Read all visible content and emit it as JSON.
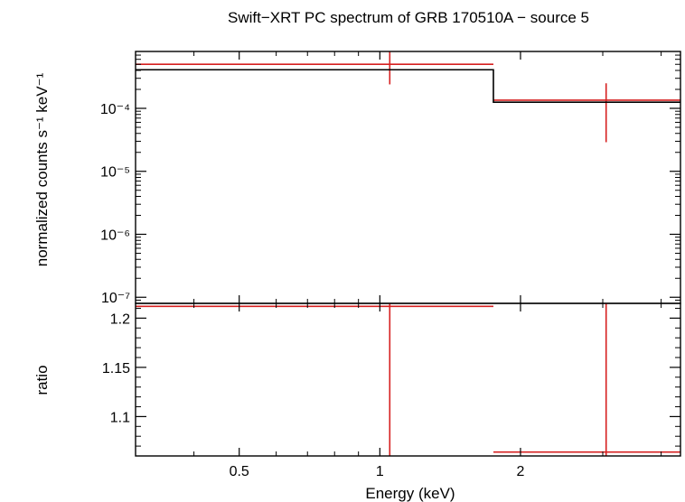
{
  "chart_data": [
    {
      "type": "line",
      "title": "Swift−XRT PC spectrum of GRB 170510A − source 5",
      "ylabel": "normalized counts s⁻¹ keV⁻¹",
      "xlabel": "",
      "x_scale": "log",
      "y_scale": "log",
      "xlim": [
        0.3,
        4.4
      ],
      "ylim": [
        8e-08,
        0.0008
      ],
      "x_tick_labels": [],
      "y_tick_labels": [
        "10⁻⁷",
        "10⁻⁶",
        "10⁻⁵",
        "10⁻⁴"
      ],
      "series": [
        {
          "color": "#d62020",
          "style": "error-bars",
          "points": [
            {
              "x": 1.05,
              "x_low": 0.3,
              "x_high": 1.75,
              "y": 0.0005,
              "y_low": 0.00024,
              "y_high": 0.0008
            },
            {
              "x": 3.05,
              "x_low": 1.75,
              "x_high": 4.4,
              "y": 0.000135,
              "y_low": 2.9e-05,
              "y_high": 0.00025
            }
          ]
        },
        {
          "color": "#000000",
          "style": "step",
          "points": [
            {
              "x_low": 0.3,
              "x_high": 1.75,
              "y": 0.00041
            },
            {
              "x_low": 1.75,
              "x_high": 4.4,
              "y": 0.000125
            }
          ]
        }
      ]
    },
    {
      "type": "line",
      "title": "",
      "ylabel": "ratio",
      "xlabel": "Energy (keV)",
      "x_scale": "log",
      "y_scale": "linear",
      "xlim": [
        0.3,
        4.4
      ],
      "ylim": [
        1.06,
        1.215
      ],
      "x_tick_labels": [
        "0.5",
        "1",
        "2"
      ],
      "y_tick_labels": [
        "1.1",
        "1.15",
        "1.2"
      ],
      "series": [
        {
          "color": "#d62020",
          "style": "error-bars",
          "points": [
            {
              "x": 1.05,
              "x_low": 0.3,
              "x_high": 1.75,
              "y": 1.212,
              "y_low": 1.06,
              "y_high": 1.215
            },
            {
              "x": 3.05,
              "x_low": 1.75,
              "x_high": 4.4,
              "y": 1.064,
              "y_low": 1.06,
              "y_high": 1.215
            }
          ]
        }
      ]
    }
  ]
}
